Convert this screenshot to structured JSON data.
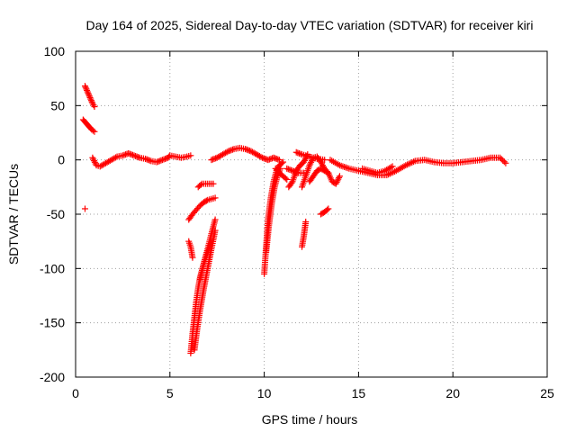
{
  "chart_data": {
    "type": "scatter",
    "title": "Day 164 of 2025, Sidereal Day-to-day VTEC variation (SDTVAR) for receiver kiri",
    "xlabel": "GPS time / hours",
    "ylabel": "SDTVAR / TECUs",
    "xlim": [
      0,
      25
    ],
    "ylim": [
      -200,
      100
    ],
    "xticks": [
      "0",
      "5",
      "10",
      "15",
      "20",
      "25"
    ],
    "yticks": [
      "100",
      "50",
      "0",
      "-50",
      "-100",
      "-150",
      "-200"
    ],
    "grid": true,
    "marker": "+",
    "color": "#ff0000",
    "series": [
      {
        "segments": [
          {
            "x": [
              0.5,
              0.6,
              0.7,
              0.8,
              0.9,
              1.0
            ],
            "y": [
              68,
              64,
              60,
              56,
              52,
              49
            ]
          },
          {
            "x": [
              0.4,
              0.55,
              0.7,
              0.85,
              1.0
            ],
            "y": [
              37,
              34,
              31,
              28,
              26
            ]
          },
          {
            "x": [
              0.5
            ],
            "y": [
              -45
            ]
          },
          {
            "x": [
              0.9,
              1.1,
              1.3,
              1.6,
              1.9,
              2.2,
              2.5,
              2.8,
              3.1,
              3.4,
              3.7,
              4.0,
              4.3,
              4.6,
              4.9,
              5.0,
              5.3,
              5.6,
              5.9,
              6.1
            ],
            "y": [
              2,
              -5,
              -6,
              -3,
              0,
              3,
              4,
              6,
              4,
              2,
              1,
              -1,
              -2,
              0,
              2,
              4,
              3,
              2,
              3,
              4
            ]
          },
          {
            "x": [
              7.2,
              7.5,
              7.8,
              8.1,
              8.4,
              8.7,
              9.0,
              9.3,
              9.6,
              9.9,
              10.2,
              10.5,
              10.8
            ],
            "y": [
              0,
              2,
              5,
              8,
              10,
              11,
              10,
              8,
              5,
              2,
              0,
              2,
              0
            ]
          },
          {
            "x": [
              6.0,
              6.2,
              6.4,
              6.6,
              6.8,
              7.0,
              7.2,
              7.4
            ],
            "y": [
              -55,
              -50,
              -46,
              -42,
              -39,
              -37,
              -36,
              -35
            ]
          },
          {
            "x": [
              6.0,
              6.1,
              6.2
            ],
            "y": [
              -75,
              -80,
              -90
            ]
          },
          {
            "x": [
              6.5,
              6.7,
              6.9,
              7.1,
              7.3
            ],
            "y": [
              -25,
              -22,
              -22,
              -22,
              -22
            ]
          },
          {
            "x": [
              6.1,
              6.2,
              6.3,
              6.4,
              6.5,
              6.6,
              6.8,
              7.0,
              7.2,
              7.4
            ],
            "y": [
              -178,
              -160,
              -145,
              -130,
              -118,
              -108,
              -95,
              -82,
              -68,
              -55
            ]
          },
          {
            "x": [
              6.3,
              6.45,
              6.6,
              6.8,
              7.0,
              7.2,
              7.4
            ],
            "y": [
              -175,
              -155,
              -138,
              -118,
              -100,
              -82,
              -65
            ]
          },
          {
            "x": [
              6.6,
              6.8,
              7.0,
              7.2
            ],
            "y": [
              -110,
              -95,
              -85,
              -75
            ]
          },
          {
            "x": [
              10.0,
              10.1,
              10.2,
              10.35,
              10.5,
              10.65,
              10.8,
              11.0
            ],
            "y": [
              -105,
              -80,
              -55,
              -35,
              -20,
              -10,
              -5,
              -2
            ]
          },
          {
            "x": [
              10.1,
              10.25,
              10.4,
              10.55,
              10.7,
              10.85
            ],
            "y": [
              -85,
              -60,
              -40,
              -25,
              -15,
              -8
            ]
          },
          {
            "x": [
              10.6,
              10.8,
              11.0,
              11.2
            ],
            "y": [
              -8,
              -12,
              -15,
              -18
            ]
          },
          {
            "x": [
              11.2,
              11.5,
              11.8,
              12.1
            ],
            "y": [
              -8,
              -10,
              -12,
              -12
            ]
          },
          {
            "x": [
              11.3,
              11.5,
              11.7,
              11.9,
              12.1,
              12.3
            ],
            "y": [
              -25,
              -20,
              -10,
              -5,
              -2,
              5
            ]
          },
          {
            "x": [
              12.0,
              12.1,
              12.2
            ],
            "y": [
              -80,
              -70,
              -57
            ]
          },
          {
            "x": [
              12.0,
              12.2,
              12.4,
              12.6,
              12.8,
              13.0,
              13.2,
              13.4,
              13.6,
              13.8,
              14.0
            ],
            "y": [
              -25,
              -15,
              -5,
              2,
              3,
              -2,
              -8,
              -12,
              -20,
              -22,
              -15
            ]
          },
          {
            "x": [
              12.4,
              12.6,
              12.8,
              13.0,
              13.2,
              13.4
            ],
            "y": [
              -20,
              -15,
              -10,
              -8,
              -10,
              -12
            ]
          },
          {
            "x": [
              13.0,
              13.2,
              13.4
            ],
            "y": [
              -50,
              -48,
              -45
            ]
          },
          {
            "x": [
              11.7,
              12.0,
              12.4,
              12.8,
              13.2
            ],
            "y": [
              7,
              5,
              3,
              1,
              0
            ]
          },
          {
            "x": [
              13.5,
              14.0,
              14.5,
              15.0,
              15.5,
              16.0,
              16.5,
              17.0,
              17.5,
              18.0,
              18.5,
              19.0,
              19.5,
              20.0,
              20.5,
              21.0,
              21.5,
              22.0,
              22.5,
              22.8
            ],
            "y": [
              0,
              -5,
              -8,
              -10,
              -12,
              -14,
              -14,
              -10,
              -5,
              -1,
              0,
              -2,
              -3,
              -3,
              -2,
              -1,
              0,
              2,
              2,
              -3
            ]
          },
          {
            "x": [
              15.2,
              15.6,
              16.0,
              16.4,
              16.8
            ],
            "y": [
              -8,
              -10,
              -12,
              -10,
              -6
            ]
          }
        ]
      }
    ]
  }
}
